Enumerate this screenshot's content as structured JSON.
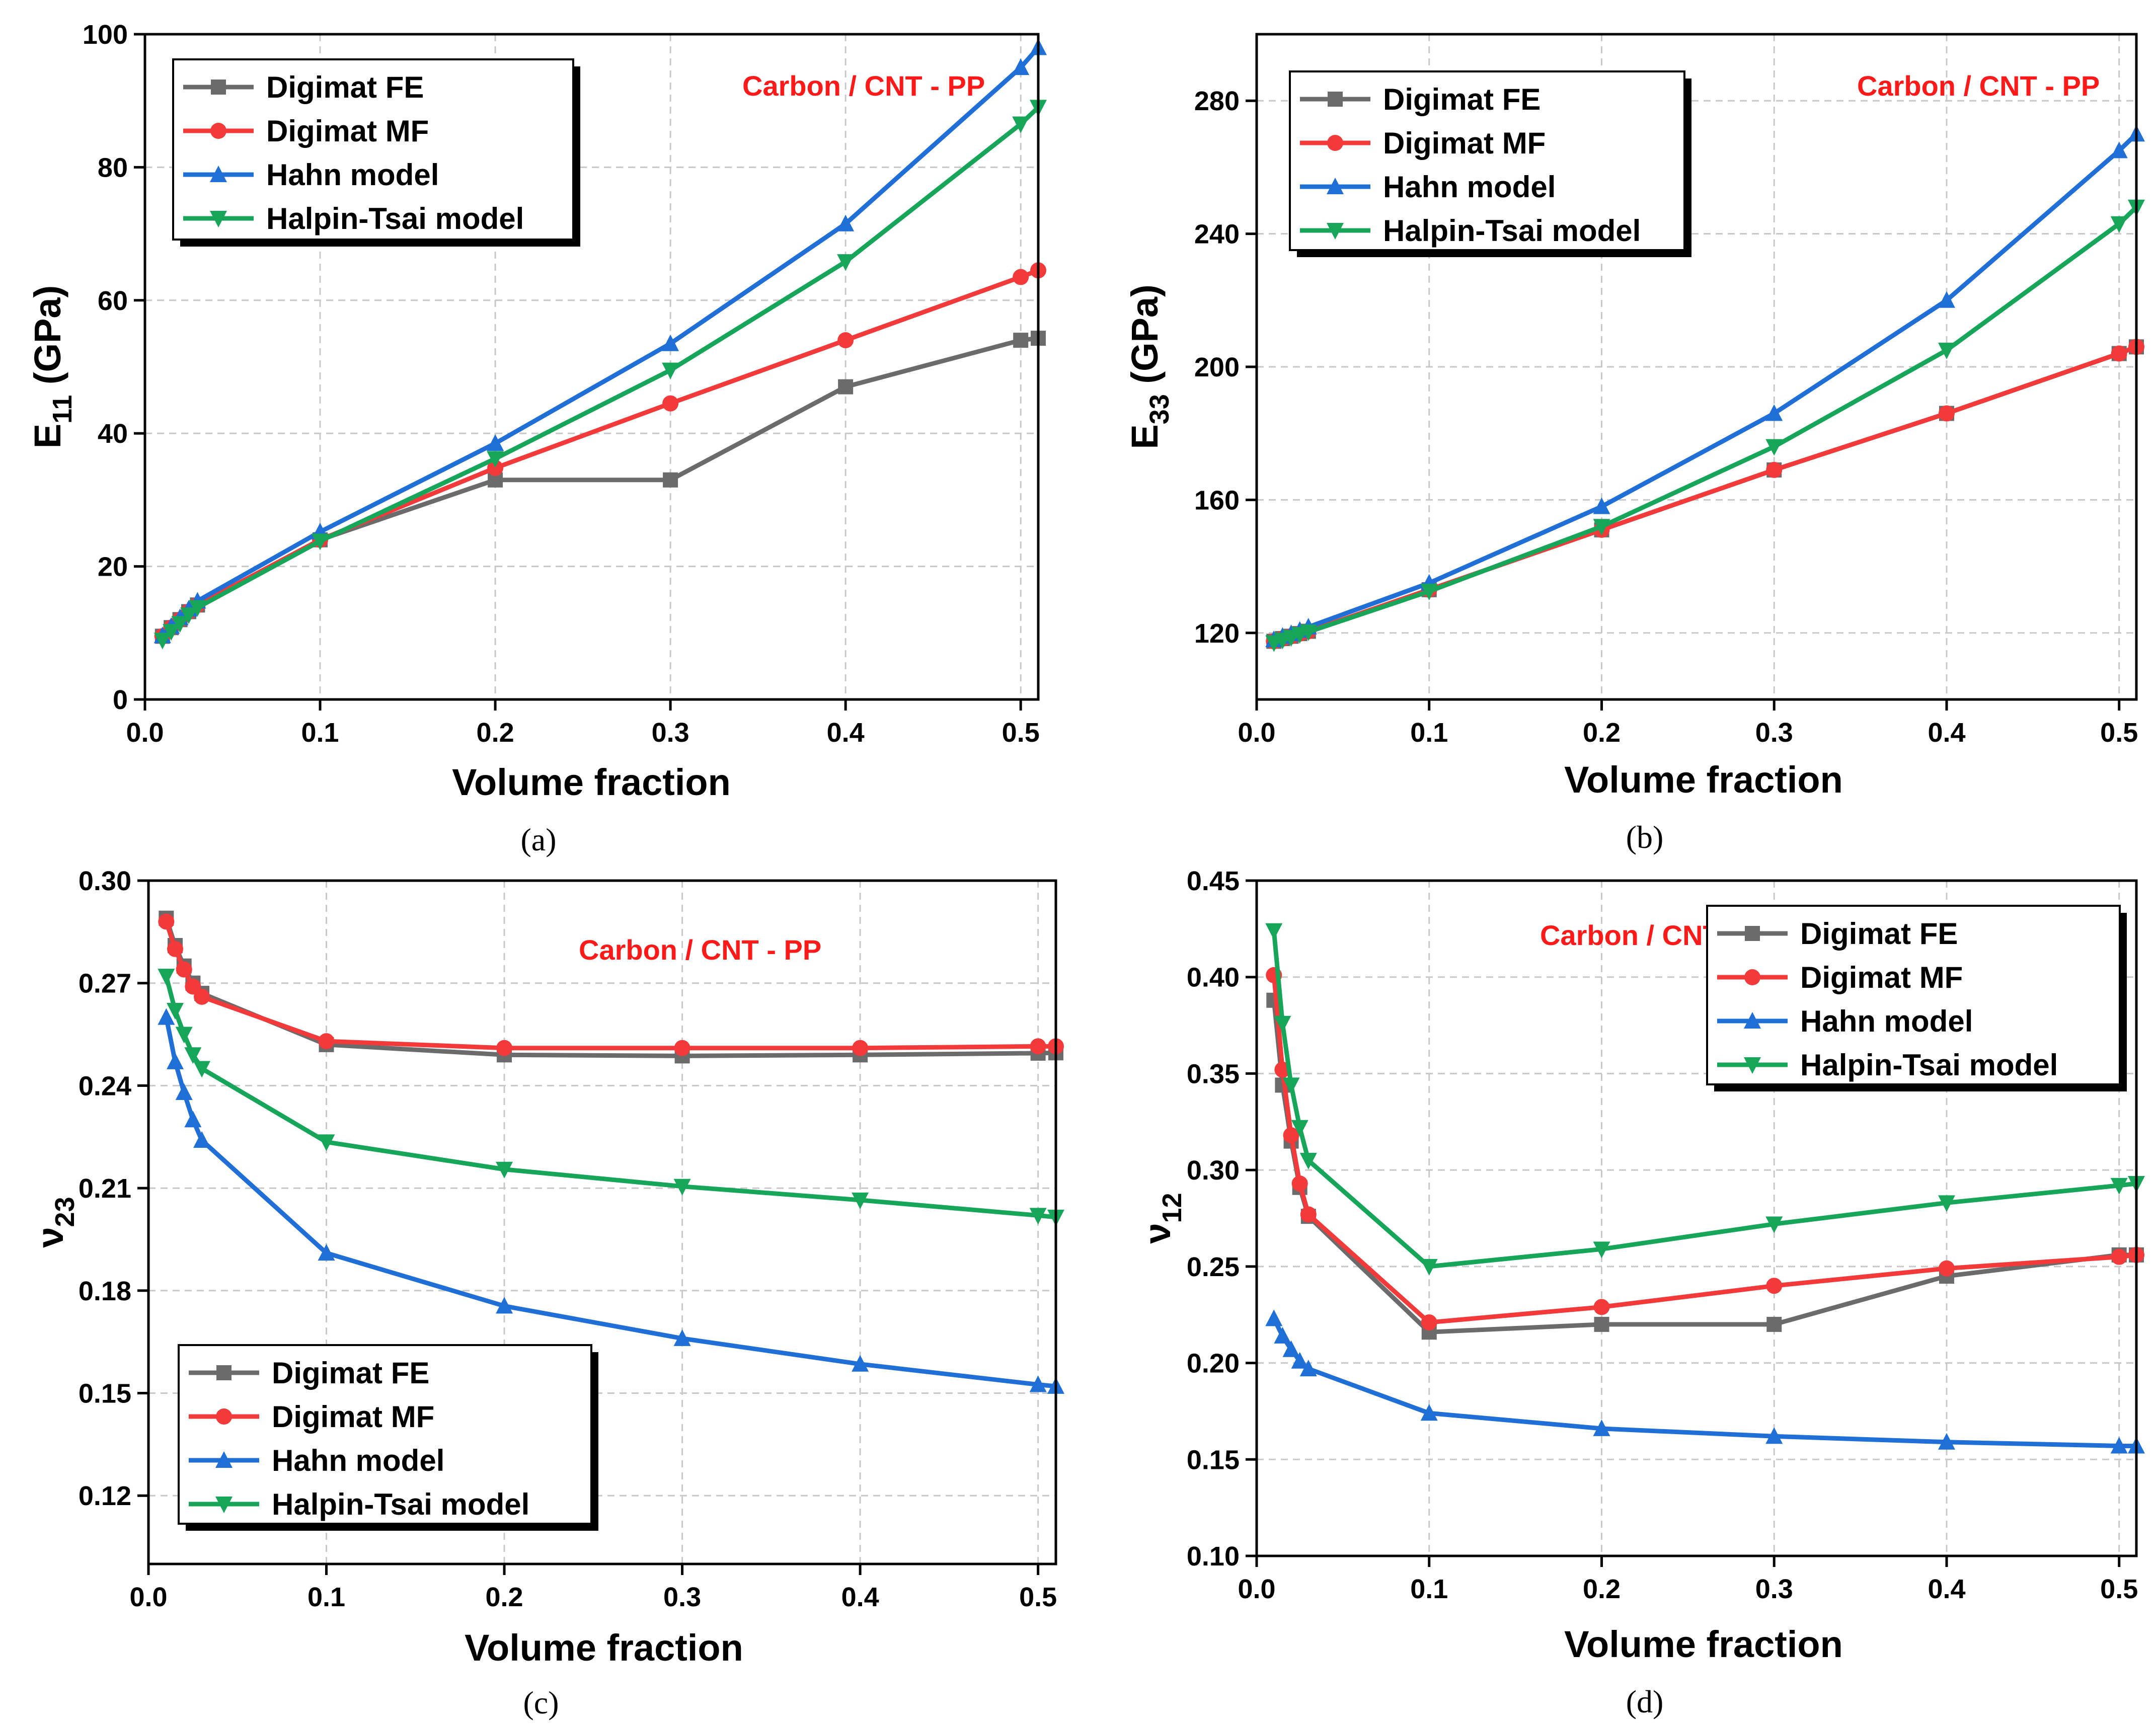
{
  "series_style": [
    {
      "name": "Digimat FE",
      "color": "#6b6b6b",
      "marker": "square"
    },
    {
      "name": "Digimat MF",
      "color": "#f23a3a",
      "marker": "circle"
    },
    {
      "name": "Hahn model",
      "color": "#1f6fd6",
      "marker": "triangle-up"
    },
    {
      "name": "Halpin-Tsai model",
      "color": "#17a55a",
      "marker": "triangle-down"
    }
  ],
  "chart_data": [
    {
      "type": "line",
      "panel": "a",
      "caption": "(a)",
      "xlabel": "Volume fraction",
      "ylabel_main": "E",
      "ylabel_sub": "11",
      "ylabel_tail": " (GPa)",
      "annotation": "Carbon / CNT - PP",
      "xlim": [
        0.0,
        0.51
      ],
      "ylim": [
        0,
        100
      ],
      "xticks": [
        0.0,
        0.1,
        0.2,
        0.3,
        0.4,
        0.5
      ],
      "xtick_labels": [
        "0.0",
        "0.1",
        "0.2",
        "0.3",
        "0.4",
        "0.5"
      ],
      "yticks": [
        0,
        20,
        40,
        60,
        80,
        100
      ],
      "ytick_labels": [
        "0",
        "20",
        "40",
        "60",
        "80",
        "100"
      ],
      "legend_position": "top-left",
      "x": [
        0.01,
        0.015,
        0.02,
        0.025,
        0.03,
        0.1,
        0.2,
        0.3,
        0.4,
        0.5,
        0.51
      ],
      "series": [
        {
          "name": "Digimat FE",
          "values": [
            9.5,
            10.8,
            12.0,
            13.2,
            14.2,
            24.0,
            33.0,
            33.0,
            47.0,
            54.0,
            54.3
          ]
        },
        {
          "name": "Digimat MF",
          "values": [
            9.5,
            10.8,
            12.0,
            13.2,
            14.2,
            24.0,
            34.8,
            44.5,
            54.0,
            63.5,
            64.5
          ]
        },
        {
          "name": "Hahn model",
          "values": [
            9.6,
            11.0,
            12.3,
            13.6,
            14.8,
            25.2,
            38.5,
            53.5,
            71.5,
            95.0,
            98.0
          ]
        },
        {
          "name": "Halpin-Tsai model",
          "values": [
            8.9,
            10.2,
            11.4,
            12.7,
            13.8,
            23.8,
            36.2,
            49.5,
            65.8,
            86.5,
            89.0
          ]
        }
      ]
    },
    {
      "type": "line",
      "panel": "b",
      "caption": "(b)",
      "xlabel": "Volume fraction",
      "ylabel_main": "E",
      "ylabel_sub": "33",
      "ylabel_tail": " (GPa)",
      "annotation": "Carbon / CNT - PP",
      "xlim": [
        0.0,
        0.51
      ],
      "ylim": [
        100,
        300
      ],
      "xticks": [
        0.0,
        0.1,
        0.2,
        0.3,
        0.4,
        0.5
      ],
      "xtick_labels": [
        "0.0",
        "0.1",
        "0.2",
        "0.3",
        "0.4",
        "0.5"
      ],
      "yticks": [
        120,
        160,
        200,
        240,
        280
      ],
      "ytick_labels": [
        "120",
        "160",
        "200",
        "240",
        "280"
      ],
      "legend_position": "top-left",
      "x": [
        0.01,
        0.015,
        0.02,
        0.025,
        0.03,
        0.1,
        0.2,
        0.3,
        0.4,
        0.5,
        0.51
      ],
      "series": [
        {
          "name": "Digimat FE",
          "values": [
            117.5,
            118.3,
            119.0,
            119.8,
            120.5,
            133.0,
            151.0,
            169.0,
            186.0,
            204.0,
            206.0
          ]
        },
        {
          "name": "Digimat MF",
          "values": [
            117.5,
            118.3,
            119.0,
            119.8,
            120.5,
            133.0,
            151.0,
            169.0,
            186.0,
            204.0,
            206.0
          ]
        },
        {
          "name": "Hahn model",
          "values": [
            118.0,
            119.0,
            119.8,
            120.8,
            121.8,
            135.0,
            158.0,
            186.0,
            220.0,
            265.0,
            270.0
          ]
        },
        {
          "name": "Halpin-Tsai model",
          "values": [
            117.0,
            117.8,
            118.6,
            119.5,
            120.3,
            132.5,
            152.0,
            176.0,
            205.0,
            243.0,
            248.0
          ]
        }
      ]
    },
    {
      "type": "line",
      "panel": "c",
      "caption": "(c)",
      "xlabel": "Volume fraction",
      "ylabel_main": "ν",
      "ylabel_sub": "23",
      "ylabel_tail": "",
      "annotation": "Carbon / CNT - PP",
      "xlim": [
        0.0,
        0.51
      ],
      "ylim": [
        0.1,
        0.3
      ],
      "xticks": [
        0.0,
        0.1,
        0.2,
        0.3,
        0.4,
        0.5
      ],
      "xtick_labels": [
        "0.0",
        "0.1",
        "0.2",
        "0.3",
        "0.4",
        "0.5"
      ],
      "yticks": [
        0.12,
        0.15,
        0.18,
        0.21,
        0.24,
        0.27,
        0.3
      ],
      "ytick_labels": [
        "0.12",
        "0.15",
        "0.18",
        "0.21",
        "0.24",
        "0.27",
        "0.30"
      ],
      "legend_position": "bottom-left",
      "x": [
        0.01,
        0.015,
        0.02,
        0.025,
        0.03,
        0.1,
        0.2,
        0.3,
        0.4,
        0.5,
        0.51
      ],
      "series": [
        {
          "name": "Digimat FE",
          "values": [
            0.289,
            0.281,
            0.275,
            0.27,
            0.267,
            0.252,
            0.249,
            0.2487,
            0.249,
            0.2495,
            0.2496
          ]
        },
        {
          "name": "Digimat MF",
          "values": [
            0.288,
            0.28,
            0.274,
            0.269,
            0.266,
            0.253,
            0.251,
            0.251,
            0.251,
            0.2515,
            0.2515
          ]
        },
        {
          "name": "Hahn model",
          "values": [
            0.26,
            0.247,
            0.238,
            0.23,
            0.224,
            0.191,
            0.1755,
            0.166,
            0.1585,
            0.1525,
            0.152
          ]
        },
        {
          "name": "Halpin-Tsai model",
          "values": [
            0.272,
            0.262,
            0.255,
            0.249,
            0.245,
            0.2235,
            0.2155,
            0.2105,
            0.2065,
            0.202,
            0.2015
          ]
        }
      ]
    },
    {
      "type": "line",
      "panel": "d",
      "caption": "(d)",
      "xlabel": "Volume fraction",
      "ylabel_main": "ν",
      "ylabel_sub": "12",
      "ylabel_tail": "",
      "annotation": "Carbon / CNT - PP",
      "xlim": [
        0.0,
        0.51
      ],
      "ylim": [
        0.1,
        0.45
      ],
      "xticks": [
        0.0,
        0.1,
        0.2,
        0.3,
        0.4,
        0.5
      ],
      "xtick_labels": [
        "0.0",
        "0.1",
        "0.2",
        "0.3",
        "0.4",
        "0.5"
      ],
      "yticks": [
        0.1,
        0.15,
        0.2,
        0.25,
        0.3,
        0.35,
        0.4,
        0.45
      ],
      "ytick_labels": [
        "0.10",
        "0.15",
        "0.20",
        "0.25",
        "0.30",
        "0.35",
        "0.40",
        "0.45"
      ],
      "legend_position": "top-right",
      "x": [
        0.01,
        0.015,
        0.02,
        0.025,
        0.03,
        0.1,
        0.2,
        0.3,
        0.4,
        0.5,
        0.51
      ],
      "series": [
        {
          "name": "Digimat FE",
          "values": [
            0.388,
            0.344,
            0.315,
            0.291,
            0.276,
            0.216,
            0.22,
            0.22,
            0.245,
            0.256,
            0.256
          ]
        },
        {
          "name": "Digimat MF",
          "values": [
            0.401,
            0.352,
            0.318,
            0.293,
            0.277,
            0.221,
            0.229,
            0.24,
            0.249,
            0.255,
            0.256
          ]
        },
        {
          "name": "Hahn model",
          "values": [
            0.223,
            0.214,
            0.207,
            0.201,
            0.197,
            0.174,
            0.166,
            0.162,
            0.159,
            0.157,
            0.157
          ]
        },
        {
          "name": "Halpin-Tsai model",
          "values": [
            0.424,
            0.376,
            0.344,
            0.322,
            0.305,
            0.25,
            0.259,
            0.272,
            0.283,
            0.292,
            0.293
          ]
        }
      ]
    }
  ]
}
